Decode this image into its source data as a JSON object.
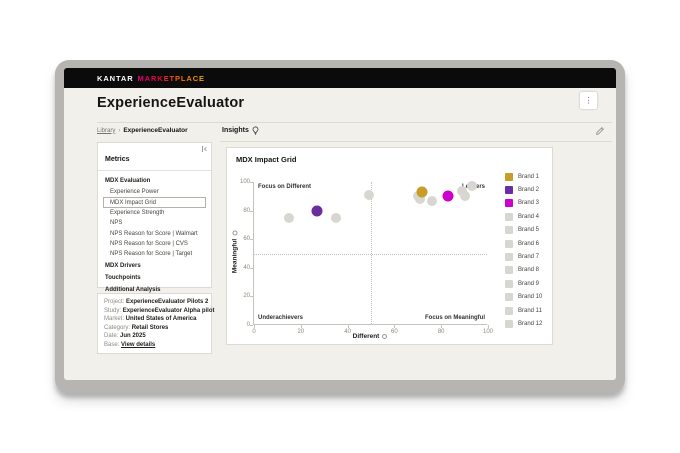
{
  "topbar": {
    "brand_primary": "KANTAR",
    "brand_secondary": "MARKETPLACE"
  },
  "header": {
    "page_title": "ExperienceEvaluator",
    "kebab_glyph": "⋮"
  },
  "breadcrumb": {
    "library": "Library",
    "separator": "›",
    "current": "ExperienceEvaluator"
  },
  "sidebar": {
    "metrics_title": "Metrics",
    "collapse_icon": "collapse-panel-icon",
    "selected_item": "MDX Impact Grid",
    "sections": [
      {
        "label": "MDX Evaluation",
        "children": [
          "Experience Power",
          "MDX Impact Grid",
          "Experience Strength",
          "NPS",
          "NPS Reason for Score | Walmart",
          "NPS Reason for Score | CVS",
          "NPS Reason for Score | Target"
        ]
      },
      {
        "label": "MDX Drivers",
        "children": []
      },
      {
        "label": "Touchpoints",
        "children": []
      },
      {
        "label": "Additional Analysis",
        "children": []
      }
    ]
  },
  "project_info": {
    "rows": [
      {
        "label": "Project:",
        "value": "ExperienceEvaluator Pilots 2",
        "link": false
      },
      {
        "label": "Study:",
        "value": "ExperienceEvaluator Alpha pilot",
        "link": false
      },
      {
        "label": "Market:",
        "value": "United States of America",
        "link": false
      },
      {
        "label": "Category:",
        "value": "Retail Stores",
        "link": false
      },
      {
        "label": "Date:",
        "value": "Jun 2025",
        "link": false
      },
      {
        "label": "Base:",
        "value": "View details",
        "link": true
      }
    ]
  },
  "insights": {
    "title": "Insights",
    "bulb_icon": "lightbulb-icon",
    "edit_icon": "edit-icon"
  },
  "chart_data": {
    "type": "scatter",
    "title": "MDX Impact Grid",
    "xlabel": "Different",
    "ylabel": "Meaningful",
    "xlim": [
      0,
      100
    ],
    "ylim": [
      0,
      100
    ],
    "xticks": [
      0,
      20,
      40,
      60,
      80,
      100
    ],
    "yticks": [
      0,
      20,
      40,
      60,
      80,
      100
    ],
    "grid": false,
    "quadrant_lines": {
      "x": 50,
      "y": 50
    },
    "quadrant_labels": {
      "top_left": "Focus on Different",
      "top_right": "Leaders",
      "bottom_left": "Underachievers",
      "bottom_right": "Focus on Meaningful"
    },
    "legend_position": "right",
    "colors": {
      "highlight_gold": "#c79c27",
      "highlight_purple": "#6b2da0",
      "highlight_magenta": "#cd00cd",
      "default_gray": "#d8d6d0"
    },
    "series": [
      {
        "name": "Brand 1",
        "color": "#c79c27",
        "x": 72,
        "y": 93
      },
      {
        "name": "Brand 2",
        "color": "#6b2da0",
        "x": 27,
        "y": 80
      },
      {
        "name": "Brand 3",
        "color": "#cd00cd",
        "x": 83,
        "y": 90
      },
      {
        "name": "Brand 4",
        "color": "#d8d6d0",
        "x": 15,
        "y": 75
      },
      {
        "name": "Brand 5",
        "color": "#d8d6d0",
        "x": 35,
        "y": 75
      },
      {
        "name": "Brand 6",
        "color": "#d8d6d0",
        "x": 49,
        "y": 91
      },
      {
        "name": "Brand 7",
        "color": "#d8d6d0",
        "x": 70,
        "y": 90
      },
      {
        "name": "Brand 8",
        "color": "#d8d6d0",
        "x": 71,
        "y": 88
      },
      {
        "name": "Brand 9",
        "color": "#d8d6d0",
        "x": 76,
        "y": 87
      },
      {
        "name": "Brand 10",
        "color": "#d8d6d0",
        "x": 89,
        "y": 94
      },
      {
        "name": "Brand 11",
        "color": "#d8d6d0",
        "x": 90,
        "y": 90
      },
      {
        "name": "Brand 12",
        "color": "#d8d6d0",
        "x": 93,
        "y": 97
      }
    ]
  }
}
